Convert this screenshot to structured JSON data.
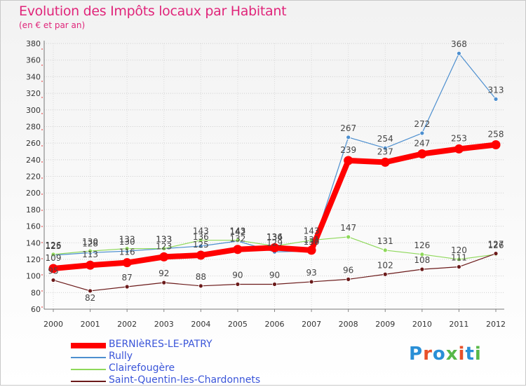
{
  "title": "Evolution des Impôts locaux par Habitant",
  "subtitle": "(en € et par an)",
  "logo": {
    "text": "Proxiti",
    "letter_colors": [
      "#2a8fd6",
      "#e8502a",
      "#2a8fd6",
      "#58b848",
      "#e8502a",
      "#2a8fd6",
      "#58b848"
    ]
  },
  "chart_data": {
    "type": "line",
    "title": "Evolution des Impôts locaux par Habitant",
    "subtitle": "(en € et par an)",
    "xlabel": "",
    "ylabel": "",
    "x": [
      "2000",
      "2001",
      "2002",
      "2003",
      "2004",
      "2005",
      "2006",
      "2007",
      "2008",
      "2009",
      "2010",
      "2011",
      "2012"
    ],
    "ylim": [
      60,
      380
    ],
    "yticks": [
      60,
      80,
      100,
      120,
      140,
      160,
      180,
      200,
      220,
      240,
      260,
      280,
      300,
      320,
      340,
      360,
      380
    ],
    "grid": true,
    "legend_position": "bottom-left",
    "series": [
      {
        "name": "Rully",
        "color": "#4d8fcf",
        "values": [
          125,
          128,
          130,
          133,
          136,
          142,
          129,
          130,
          267,
          254,
          272,
          368,
          313
        ],
        "labels": [
          "125",
          "128",
          "130",
          "133",
          "136",
          "142",
          "129",
          "130",
          "267",
          "254",
          "272",
          "368",
          "313"
        ]
      },
      {
        "name": "Clairefougère",
        "color": "#8ed85a",
        "values": [
          126,
          130,
          133,
          133,
          143,
          143,
          136,
          143,
          147,
          131,
          126,
          120,
          126
        ],
        "labels": [
          "126",
          "130",
          "133",
          "133",
          "143",
          "143",
          "136",
          "143",
          "147",
          "131",
          "126",
          "120",
          "126"
        ]
      },
      {
        "name": "Saint-Quentin-les-Chardonnets",
        "color": "#6b1a1a",
        "values": [
          95,
          82,
          87,
          92,
          88,
          90,
          90,
          93,
          96,
          102,
          108,
          111,
          127
        ],
        "labels": [
          "95",
          "82",
          "87",
          "92",
          "88",
          "90",
          "90",
          "93",
          "96",
          "102",
          "108",
          "111",
          "127"
        ]
      },
      {
        "name": "BERNIèRES-LE-PATRY",
        "color": "#ff0000",
        "values": [
          109,
          113,
          116,
          123,
          125,
          132,
          134,
          131,
          239,
          237,
          247,
          253,
          258
        ],
        "labels": [
          "109",
          "113",
          "116",
          "123",
          "125",
          "132",
          "134",
          "131",
          "239",
          "237",
          "247",
          "253",
          "258"
        ]
      }
    ]
  },
  "legend": [
    {
      "label": "BERNIèRES-LE-PATRY",
      "color": "#ff0000",
      "thickness": "thick"
    },
    {
      "label": "Rully",
      "color": "#4d8fcf",
      "thickness": "thin"
    },
    {
      "label": "Clairefougère",
      "color": "#8ed85a",
      "thickness": "thin"
    },
    {
      "label": "Saint-Quentin-les-Chardonnets",
      "color": "#6b1a1a",
      "thickness": "thin"
    }
  ]
}
